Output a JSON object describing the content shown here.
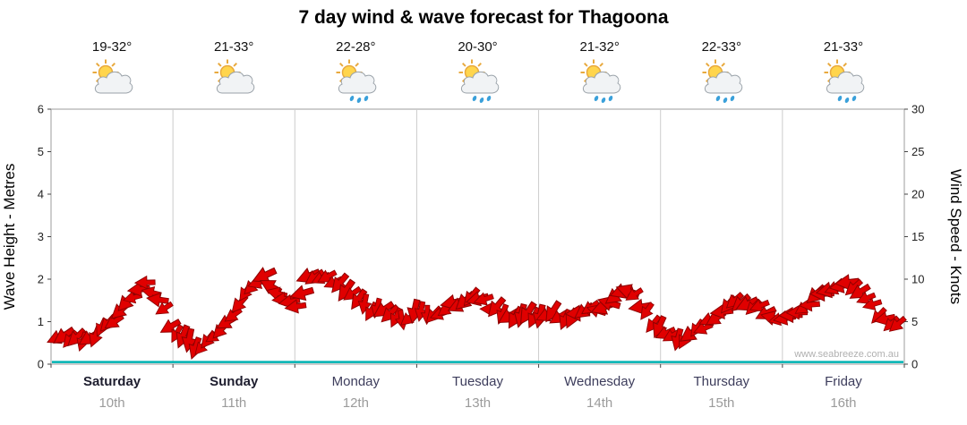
{
  "title": "7 day wind & wave forecast for Thagoona",
  "watermark": "www.seabreeze.com.au",
  "days": [
    {
      "name": "Saturday",
      "date": "10th",
      "temp": "19-32°",
      "icon": "partly-cloudy",
      "bold": true
    },
    {
      "name": "Sunday",
      "date": "11th",
      "temp": "21-33°",
      "icon": "partly-cloudy",
      "bold": true
    },
    {
      "name": "Monday",
      "date": "12th",
      "temp": "22-28°",
      "icon": "showers",
      "bold": false
    },
    {
      "name": "Tuesday",
      "date": "13th",
      "temp": "20-30°",
      "icon": "showers",
      "bold": false
    },
    {
      "name": "Wednesday",
      "date": "14th",
      "temp": "21-32°",
      "icon": "showers",
      "bold": false
    },
    {
      "name": "Thursday",
      "date": "15th",
      "temp": "22-33°",
      "icon": "showers",
      "bold": false
    },
    {
      "name": "Friday",
      "date": "16th",
      "temp": "21-33°",
      "icon": "showers",
      "bold": false
    }
  ],
  "axes": {
    "left_label": "Wave Height - Metres",
    "right_label": "Wind Speed - Knots",
    "left_ticks": [
      0,
      1,
      2,
      3,
      4,
      5,
      6
    ],
    "right_ticks": [
      0,
      5,
      10,
      15,
      20,
      25,
      30
    ]
  },
  "colors": {
    "wind": "#e00000",
    "wind_stroke": "#8f0000",
    "wave": "#00b2b2",
    "grid": "#cccccc",
    "border": "#9e9e9e",
    "tick": "#444444",
    "watermark": "#b0b0b0",
    "sun": "#ffd54d",
    "sun_stroke": "#e8a93e",
    "cloud": "#f1f3f5",
    "cloud_stroke": "#99a1a8",
    "rain": "#3aa0da"
  },
  "chart_data": {
    "type": "line",
    "title": "7 day wind & wave forecast for Thagoona",
    "categories": [
      "Saturday 10th",
      "Sunday 11th",
      "Monday 12th",
      "Tuesday 13th",
      "Wednesday 14th",
      "Thursday 15th",
      "Friday 16th"
    ],
    "x_unit": "hours",
    "x_start": 0,
    "x_step": 3,
    "y_left": {
      "label": "Wave Height - Metres",
      "range": [
        0,
        6
      ]
    },
    "y_right": {
      "label": "Wind Speed - Knots",
      "range": [
        0,
        30
      ]
    },
    "series": [
      {
        "name": "Wind Speed",
        "unit": "knots",
        "axis": "right",
        "style": "wind-arrows",
        "values": [
          3.5,
          3,
          2.5,
          3.5,
          5,
          7.5,
          9.5,
          8,
          4,
          2.5,
          2,
          3.5,
          6,
          9,
          10.5,
          8,
          7,
          10.5,
          10,
          9,
          7.5,
          6.5,
          6,
          5.5,
          6,
          5.5,
          6.5,
          7.5,
          8,
          6.5,
          5.5,
          6,
          5.5,
          6,
          5.5,
          6,
          6.5,
          8,
          8.5,
          6,
          4,
          3,
          3.5,
          4.5,
          6.5,
          7.5,
          7,
          6,
          5.5,
          6,
          7.5,
          9,
          9.5,
          8.5,
          6.5,
          5,
          4
        ],
        "directions_deg": [
          250,
          230,
          210,
          200,
          220,
          240,
          260,
          270,
          250,
          220,
          200,
          210,
          230,
          250,
          265,
          270,
          260,
          250,
          240,
          230,
          220,
          210,
          200,
          195,
          200,
          210,
          225,
          240,
          250,
          240,
          225,
          215,
          210,
          220,
          230,
          245,
          255,
          265,
          255,
          240,
          230,
          215,
          205,
          215,
          235,
          250,
          260,
          255,
          245,
          235,
          230,
          240,
          255,
          265,
          250,
          235,
          230
        ]
      },
      {
        "name": "Wave Height",
        "unit": "m",
        "axis": "left",
        "style": "flat-line",
        "constant": 0.05
      }
    ]
  }
}
